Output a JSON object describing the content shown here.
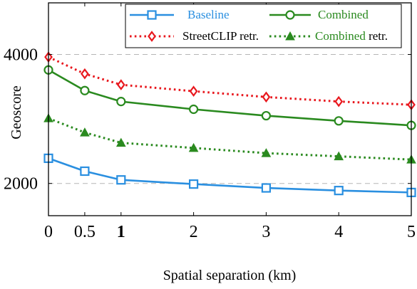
{
  "chart_data": {
    "type": "line",
    "xlabel": "Spatial separation (km)",
    "ylabel": "Geoscore",
    "x": [
      0,
      0.5,
      1,
      2,
      3,
      4,
      5
    ],
    "xticks": [
      {
        "value": 0,
        "label": "0"
      },
      {
        "value": 0.5,
        "label": "0.5"
      },
      {
        "value": 1,
        "label": "1",
        "bold": true
      },
      {
        "value": 2,
        "label": "2"
      },
      {
        "value": 3,
        "label": "3"
      },
      {
        "value": 4,
        "label": "4"
      },
      {
        "value": 5,
        "label": "5"
      }
    ],
    "yticks": [
      {
        "value": 2000,
        "label": "2000"
      },
      {
        "value": 4000,
        "label": "4000"
      }
    ],
    "xlim": [
      0,
      5
    ],
    "ylim": [
      1500,
      4800
    ],
    "grid": "horizontal dashed at y ticks",
    "legend_placement": "top, inside, two columns",
    "series": [
      {
        "name": "Baseline",
        "color": "#2a8fe0",
        "label_color": "#2a8fe0",
        "marker": "square",
        "line_style": "solid",
        "values": [
          2390,
          2190,
          2055,
          1990,
          1930,
          1890,
          1860
        ]
      },
      {
        "name": "Combined",
        "color": "#2a8a1f",
        "label_color": "#2a8a1f",
        "marker": "circle",
        "line_style": "solid",
        "values": [
          3760,
          3440,
          3270,
          3150,
          3050,
          2970,
          2900
        ]
      },
      {
        "name": "StreetCLIP retr.",
        "color": "#e8181e",
        "label_color": "#000000",
        "marker": "diamond",
        "line_style": "dotted",
        "values": [
          3960,
          3700,
          3530,
          3430,
          3340,
          3270,
          3220
        ]
      },
      {
        "name": "Combined",
        "name_suffix": " retr.",
        "color": "#2a8a1f",
        "label_color": "#2a8a1f",
        "marker": "triangle",
        "line_style": "dotted",
        "values": [
          3010,
          2790,
          2630,
          2550,
          2470,
          2420,
          2370
        ]
      }
    ]
  }
}
